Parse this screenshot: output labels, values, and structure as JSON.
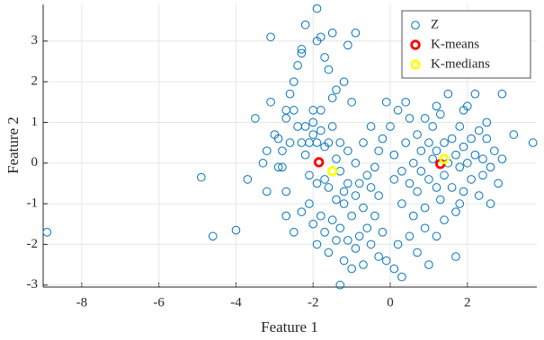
{
  "chart_data": {
    "type": "scatter",
    "x_label": "Feature 1",
    "y_label": "Feature 2",
    "xlim": [
      -9,
      3.8
    ],
    "ylim": [
      -3.05,
      3.9
    ],
    "xticks": [
      -8,
      -6,
      -4,
      -2,
      0,
      2
    ],
    "yticks": [
      -3,
      -2,
      -1,
      0,
      1,
      2,
      3
    ],
    "grid": true,
    "legend": "upper right",
    "series": [
      {
        "name": "Z",
        "color": "#0072bd",
        "x": [
          -8.9,
          -4.9,
          -4.6,
          -4.0,
          -3.7,
          -3.3,
          -3.2,
          -3.1,
          -3.1,
          -2.9,
          -2.8,
          -2.7,
          -2.7,
          -2.6,
          -2.5,
          -2.5,
          -2.4,
          -2.3,
          -2.3,
          -2.2,
          -2.0,
          -1.9,
          -1.9,
          -1.8,
          -1.7,
          -1.6,
          -1.5,
          -1.4,
          -1.2,
          -1.1,
          -0.9,
          -1.0,
          -1.3,
          -3.5,
          -3.2,
          -3.0,
          -2.9,
          -2.8,
          -2.7,
          -2.7,
          -2.6,
          -2.5,
          -2.4,
          -2.3,
          -2.2,
          -2.2,
          -2.1,
          -2.1,
          -2.0,
          -2.0,
          -1.9,
          -1.9,
          -1.8,
          -1.8,
          -1.7,
          -1.7,
          -1.6,
          -1.6,
          -1.5,
          -1.5,
          -1.4,
          -1.4,
          -1.3,
          -1.3,
          -1.2,
          -1.2,
          -1.1,
          -1.1,
          -1.0,
          -0.9,
          -0.9,
          -0.8,
          -0.7,
          -0.7,
          -0.6,
          -0.6,
          -0.5,
          -0.5,
          -0.4,
          -0.4,
          -0.3,
          -0.3,
          -2.3,
          -2.1,
          -2.0,
          -1.9,
          -1.8,
          -1.7,
          -1.6,
          -1.5,
          -1.4,
          -1.3,
          -1.2,
          -1.1,
          -1.0,
          -0.9,
          -0.8,
          -0.7,
          -0.5,
          -0.3,
          -0.2,
          -0.1,
          0.1,
          0.2,
          0.3,
          0.5,
          0.7,
          0.9,
          1.0,
          1.2,
          1.4,
          1.7,
          1.8,
          -0.2,
          -0.1,
          0.0,
          0.1,
          0.1,
          0.2,
          0.3,
          0.3,
          0.4,
          0.5,
          0.5,
          0.6,
          0.6,
          0.7,
          0.7,
          0.8,
          0.8,
          0.9,
          0.9,
          1.0,
          1.0,
          1.1,
          1.1,
          1.2,
          1.2,
          1.3,
          1.3,
          1.4,
          1.4,
          1.5,
          1.5,
          1.6,
          1.6,
          1.7,
          1.7,
          1.8,
          1.8,
          1.9,
          1.9,
          2.0,
          2.0,
          2.1,
          2.1,
          2.2,
          2.3,
          2.3,
          2.4,
          2.4,
          2.5,
          2.6,
          2.6,
          2.7,
          2.8,
          2.9,
          2.9,
          3.2,
          3.7,
          2.2,
          1.9,
          2.5,
          1.2,
          0.4
        ],
        "values": [
          -1.7,
          -0.35,
          -1.8,
          -1.65,
          -0.4,
          0.0,
          -0.7,
          1.5,
          3.1,
          0.6,
          -0.1,
          -1.3,
          -0.7,
          0.5,
          2.0,
          -1.7,
          2.4,
          2.8,
          2.7,
          3.4,
          1.3,
          3.8,
          3.0,
          3.1,
          2.6,
          2.3,
          3.2,
          1.8,
          2.0,
          2.9,
          3.2,
          1.5,
          -3.0,
          1.1,
          0.3,
          0.7,
          -0.1,
          0.3,
          1.3,
          1.1,
          1.7,
          1.3,
          0.9,
          0.5,
          0.9,
          0.2,
          0.5,
          -0.3,
          1.0,
          0.7,
          0.5,
          -0.5,
          1.3,
          0.8,
          0.4,
          -0.4,
          0.5,
          -0.6,
          1.6,
          0.9,
          0.1,
          -0.9,
          0.5,
          -0.2,
          -0.7,
          -1.0,
          0.3,
          -0.5,
          -1.3,
          0.0,
          -0.8,
          -0.5,
          0.5,
          -1.1,
          -0.3,
          -1.6,
          0.9,
          -0.6,
          -0.1,
          -1.3,
          0.3,
          -0.8,
          -1.2,
          -1.0,
          -1.5,
          -2.0,
          -1.3,
          -1.7,
          -2.2,
          -1.4,
          -1.9,
          -1.6,
          -2.4,
          -1.9,
          -2.6,
          -2.1,
          -1.8,
          -2.5,
          -2.0,
          -2.3,
          -1.7,
          -2.4,
          -2.6,
          -2.0,
          -2.8,
          -1.8,
          -2.2,
          -1.6,
          -2.5,
          -1.8,
          -1.4,
          -2.3,
          -1.0,
          0.6,
          1.5,
          0.9,
          0.2,
          -0.4,
          1.3,
          -0.2,
          -1.0,
          0.5,
          -0.5,
          1.1,
          0.0,
          -1.3,
          0.7,
          -0.7,
          0.3,
          -0.2,
          1.1,
          -1.1,
          0.5,
          -0.4,
          0.1,
          0.9,
          -0.6,
          0.3,
          1.2,
          -0.9,
          0.5,
          -0.3,
          1.7,
          0.0,
          -0.6,
          0.6,
          0.2,
          -1.2,
          0.9,
          -0.1,
          0.4,
          -0.7,
          1.4,
          0.0,
          -0.4,
          0.6,
          0.2,
          -0.8,
          0.8,
          0.1,
          -0.3,
          0.6,
          -0.1,
          -1.0,
          0.3,
          -0.5,
          1.7,
          0.1,
          0.7,
          0.5,
          1.7,
          1.3,
          1.0,
          1.4,
          1.5
        ]
      },
      {
        "name": "K-means",
        "color": "#ff0000",
        "x": [
          -1.85,
          1.3
        ],
        "values": [
          0.02,
          -0.02
        ]
      },
      {
        "name": "K-medians",
        "color": "#ffff00",
        "x": [
          -1.5,
          1.4
        ],
        "values": [
          -0.2,
          0.1
        ]
      }
    ]
  }
}
